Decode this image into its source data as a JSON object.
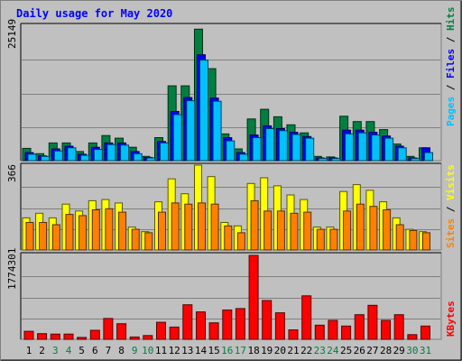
{
  "chart_data": [
    {
      "type": "bar",
      "title": "Daily usage for May 2020",
      "panel": "hits-files-pages",
      "ymax_label": "25149",
      "ylim": [
        0,
        25149
      ],
      "legend": [
        {
          "text": "Pages",
          "color": "#00c0ff"
        },
        {
          "text": " / ",
          "color": "#000000"
        },
        {
          "text": "Files",
          "color": "#0000ff"
        },
        {
          "text": " / ",
          "color": "#000000"
        },
        {
          "text": "Hits",
          "color": "#008040"
        }
      ],
      "categories": [
        "1",
        "2",
        "3",
        "4",
        "5",
        "6",
        "7",
        "8",
        "9",
        "10",
        "11",
        "12",
        "13",
        "14",
        "15",
        "16",
        "17",
        "18",
        "19",
        "20",
        "21",
        "22",
        "23",
        "24",
        "25",
        "26",
        "27",
        "28",
        "29",
        "30",
        "31"
      ],
      "series": [
        {
          "name": "Hits",
          "color": "#008040",
          "values": [
            2300,
            1300,
            3300,
            3300,
            1700,
            3300,
            4700,
            4200,
            2500,
            800,
            4300,
            14000,
            14000,
            24600,
            17200,
            5000,
            2200,
            7800,
            9600,
            8200,
            6700,
            5200,
            800,
            700,
            8300,
            7300,
            7300,
            5800,
            3100,
            800,
            2400
          ]
        },
        {
          "name": "Files",
          "color": "#0000ff",
          "values": [
            1500,
            900,
            2200,
            2700,
            1200,
            2500,
            3300,
            3300,
            1700,
            600,
            3600,
            9200,
            11800,
            19800,
            11700,
            4300,
            1500,
            4800,
            6500,
            6000,
            5300,
            4500,
            500,
            500,
            5700,
            5700,
            5300,
            4600,
            2700,
            500,
            2400
          ]
        },
        {
          "name": "Pages",
          "color": "#00c0ff",
          "values": [
            1200,
            800,
            1800,
            2400,
            1000,
            2100,
            3000,
            2900,
            1300,
            500,
            3300,
            8600,
            11200,
            18800,
            11100,
            3700,
            1200,
            4300,
            6000,
            5600,
            4900,
            4200,
            400,
            400,
            5000,
            5200,
            4800,
            4200,
            2400,
            400,
            1500
          ]
        }
      ]
    },
    {
      "type": "bar",
      "panel": "visits-sites",
      "ymax_label": "366",
      "ylim": [
        0,
        366
      ],
      "legend": [
        {
          "text": "Sites",
          "color": "#ff8000"
        },
        {
          "text": " / ",
          "color": "#000000"
        },
        {
          "text": "Visits",
          "color": "#ffff00"
        }
      ],
      "categories": [
        "1",
        "2",
        "3",
        "4",
        "5",
        "6",
        "7",
        "8",
        "9",
        "10",
        "11",
        "12",
        "13",
        "14",
        "15",
        "16",
        "17",
        "18",
        "19",
        "20",
        "21",
        "22",
        "23",
        "24",
        "25",
        "26",
        "27",
        "28",
        "29",
        "30",
        "31"
      ],
      "series": [
        {
          "name": "Visits",
          "color": "#ffff00",
          "values": [
            140,
            160,
            140,
            200,
            170,
            215,
            220,
            205,
            100,
            80,
            210,
            310,
            245,
            370,
            320,
            120,
            105,
            290,
            315,
            280,
            240,
            220,
            100,
            100,
            255,
            285,
            260,
            210,
            140,
            90,
            80
          ]
        },
        {
          "name": "Sites",
          "color": "#ff8000",
          "values": [
            120,
            120,
            110,
            155,
            150,
            175,
            180,
            165,
            90,
            75,
            165,
            205,
            200,
            205,
            200,
            105,
            75,
            215,
            170,
            170,
            160,
            165,
            90,
            90,
            170,
            200,
            190,
            175,
            110,
            85,
            75
          ]
        }
      ]
    },
    {
      "type": "bar",
      "panel": "kbytes",
      "ymax_label": "1774301",
      "ylim": [
        0,
        1774301
      ],
      "legend": [
        {
          "text": "KBytes",
          "color": "#ff0000"
        }
      ],
      "categories": [
        "1",
        "2",
        "3",
        "4",
        "5",
        "6",
        "7",
        "8",
        "9",
        "10",
        "11",
        "12",
        "13",
        "14",
        "15",
        "16",
        "17",
        "18",
        "19",
        "20",
        "21",
        "22",
        "23",
        "24",
        "25",
        "26",
        "27",
        "28",
        "29",
        "30",
        "31"
      ],
      "series": [
        {
          "name": "KBytes",
          "color": "#ff0000",
          "values": [
            170000,
            120000,
            110000,
            110000,
            40000,
            190000,
            440000,
            330000,
            50000,
            80000,
            360000,
            260000,
            730000,
            580000,
            350000,
            620000,
            650000,
            1774301,
            820000,
            560000,
            200000,
            920000,
            300000,
            400000,
            280000,
            520000,
            720000,
            400000,
            520000,
            100000,
            280000
          ]
        }
      ],
      "x_label_colors": [
        "#000000",
        "#000000",
        "#008040",
        "#008040",
        "#000000",
        "#000000",
        "#000000",
        "#000000",
        "#008040",
        "#008040",
        "#000000",
        "#000000",
        "#000000",
        "#000000",
        "#000000",
        "#008040",
        "#008040",
        "#000000",
        "#000000",
        "#000000",
        "#000000",
        "#000000",
        "#008040",
        "#008040",
        "#000000",
        "#000000",
        "#000000",
        "#000000",
        "#000000",
        "#008040",
        "#008040"
      ]
    }
  ]
}
